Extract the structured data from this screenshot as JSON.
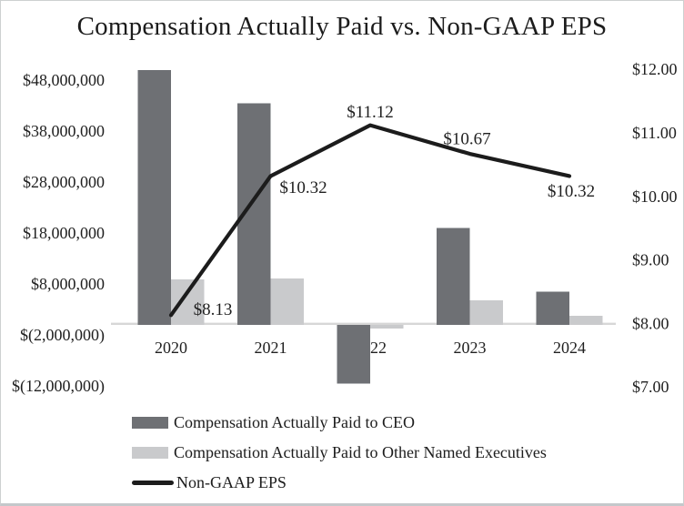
{
  "frame": {
    "background": "#ffffff",
    "border_color": "#cdd0d1"
  },
  "chart_data": {
    "type": "combo-bar-line",
    "title": "Compensation Actually Paid vs. Non-GAAP EPS",
    "categories": [
      "2020",
      "2021",
      "2022",
      "2023",
      "2024"
    ],
    "series": [
      {
        "name": "Compensation Actually Paid to CEO",
        "type": "bar",
        "axis": "left",
        "color": "#6e7074",
        "values": [
          50000000,
          43500000,
          -11500000,
          19000000,
          6500000
        ]
      },
      {
        "name": "Compensation Actually Paid to Other Named Executives",
        "type": "bar",
        "axis": "left",
        "color": "#c9cacc",
        "values": [
          8900000,
          9100000,
          -700000,
          4800000,
          1800000
        ]
      },
      {
        "name": "Non-GAAP EPS",
        "type": "line",
        "axis": "right",
        "color": "#1c1c1c",
        "values": [
          8.13,
          10.32,
          11.12,
          10.67,
          10.32
        ],
        "point_labels": [
          "$8.13",
          "$10.32",
          "$11.12",
          "$10.67",
          "$10.32"
        ],
        "label_offsets": [
          [
            46,
            -7
          ],
          [
            36,
            12
          ],
          [
            0,
            -15
          ],
          [
            -3,
            -17
          ],
          [
            2,
            16
          ]
        ]
      }
    ],
    "left_axis": {
      "ticks": [
        {
          "label": "$48,000,000",
          "value": 48000000
        },
        {
          "label": "$38,000,000",
          "value": 38000000
        },
        {
          "label": "$28,000,000",
          "value": 28000000
        },
        {
          "label": "$18,000,000",
          "value": 18000000
        },
        {
          "label": "$8,000,000",
          "value": 8000000
        },
        {
          "label": "$(2,000,000)",
          "value": -2000000
        },
        {
          "label": "$(12,000,000)",
          "value": -12000000
        }
      ],
      "range": [
        -12000000,
        50400000
      ]
    },
    "right_axis": {
      "ticks": [
        {
          "label": "$12.00",
          "value": 12
        },
        {
          "label": "$11.00",
          "value": 11
        },
        {
          "label": "$10.00",
          "value": 10
        },
        {
          "label": "$9.00",
          "value": 9
        },
        {
          "label": "$8.00",
          "value": 8
        },
        {
          "label": "$7.00",
          "value": 7
        }
      ],
      "range": [
        7,
        12
      ]
    },
    "legend_position": "bottom-left",
    "grid": false,
    "axis_line_color": "#d7d7d7",
    "text_color": "#1f1f1f"
  }
}
